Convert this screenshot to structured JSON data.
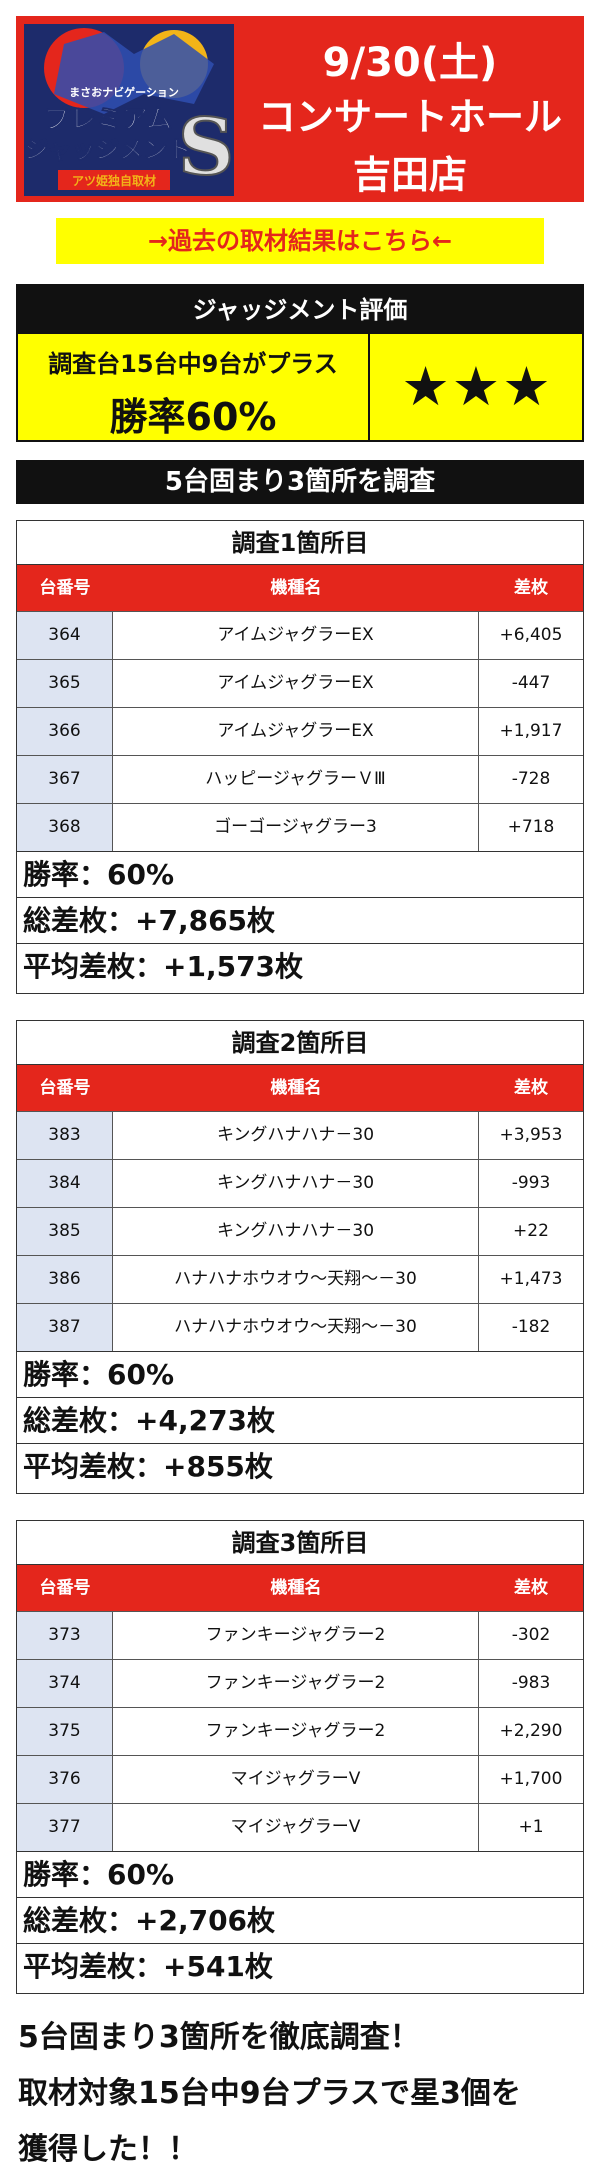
{
  "header": {
    "logo": {
      "title_lines": [
        "プレミアム",
        "ジャッジメント"
      ],
      "badge_letter": "S",
      "kicker": "まさおナビゲーション",
      "footer": "アツ姫独自取材",
      "colors": {
        "gold": "#f2b418",
        "navy": "#1d2b6b",
        "red": "#e4261c"
      }
    },
    "date": "9/30(土)",
    "hall_name": "コンサートホール",
    "store_name": "吉田店",
    "background_color": "#e4261c"
  },
  "past_results_link": "→過去の取材結果はこちら←",
  "judgement": {
    "title": "ジャッジメント評価",
    "summary": "調査台15台中9台がプラス",
    "win_rate": "勝率60%",
    "stars": "★★★"
  },
  "survey_heading": "5台固まり3箇所を調査",
  "table_headers": [
    "台番号",
    "機種名",
    "差枚"
  ],
  "blocks": [
    {
      "title": "調査1箇所目",
      "rows": [
        [
          "364",
          "アイムジャグラーEX",
          "+6,405"
        ],
        [
          "365",
          "アイムジャグラーEX",
          "-447"
        ],
        [
          "366",
          "アイムジャグラーEX",
          "+1,917"
        ],
        [
          "367",
          "ハッピージャグラーＶⅢ",
          "-728"
        ],
        [
          "368",
          "ゴーゴージャグラー3",
          "+718"
        ]
      ],
      "win_rate": "勝率：60%",
      "total": "総差枚：+7,865枚",
      "average": "平均差枚：+1,573枚"
    },
    {
      "title": "調査2箇所目",
      "rows": [
        [
          "383",
          "キングハナハナ－30",
          "+3,953"
        ],
        [
          "384",
          "キングハナハナ－30",
          "-993"
        ],
        [
          "385",
          "キングハナハナ－30",
          "+22"
        ],
        [
          "386",
          "ハナハナホウオウ～天翔～－30",
          "+1,473"
        ],
        [
          "387",
          "ハナハナホウオウ～天翔～－30",
          "-182"
        ]
      ],
      "win_rate": "勝率：60%",
      "total": "総差枚：+4,273枚",
      "average": "平均差枚：+855枚"
    },
    {
      "title": "調査3箇所目",
      "rows": [
        [
          "373",
          "ファンキージャグラー2",
          "-302"
        ],
        [
          "374",
          "ファンキージャグラー2",
          "-983"
        ],
        [
          "375",
          "ファンキージャグラー2",
          "+2,290"
        ],
        [
          "376",
          "マイジャグラーV",
          "+1,700"
        ],
        [
          "377",
          "マイジャグラーV",
          "+1"
        ]
      ],
      "win_rate": "勝率：60%",
      "total": "総差枚：+2,706枚",
      "average": "平均差枚：+541枚"
    }
  ],
  "closing_lines": [
    "5台固まり3箇所を徹底調査！",
    "取材対象15台中9台プラスで星3個を",
    "獲得した！！"
  ]
}
